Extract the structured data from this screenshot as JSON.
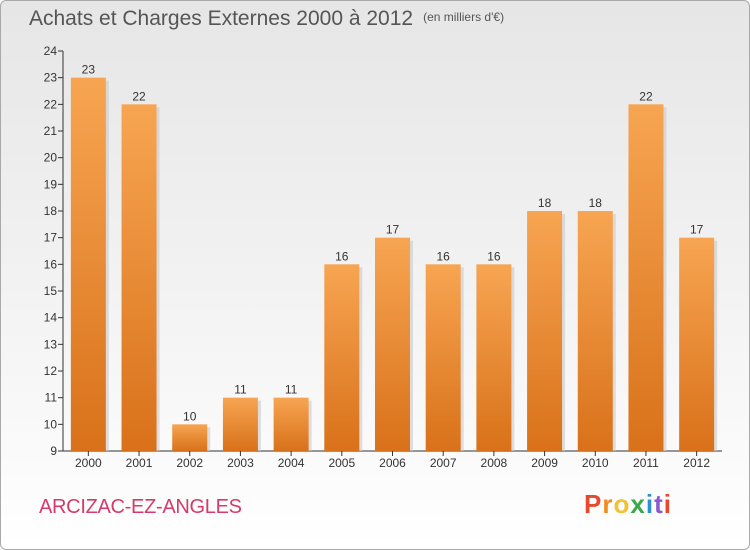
{
  "title": "Achats et Charges Externes 2000 à 2012",
  "unit_note": "(en milliers d'€)",
  "place": "ARCIZAC-EZ-ANGLES",
  "logo": "Proxiti",
  "colors": {
    "bar_top": "#f7a552",
    "bar_bottom": "#d9711a",
    "title": "#555555",
    "place": "#d63a6a"
  },
  "chart_data": {
    "type": "bar",
    "title": "Achats et Charges Externes 2000 à 2012",
    "subtitle": "(en milliers d'€)",
    "categories": [
      "2000",
      "2001",
      "2002",
      "2003",
      "2004",
      "2005",
      "2006",
      "2007",
      "2008",
      "2009",
      "2010",
      "2011",
      "2012"
    ],
    "values": [
      23,
      22,
      10,
      11,
      11,
      16,
      17,
      16,
      16,
      18,
      18,
      22,
      17
    ],
    "ylim": [
      9,
      24
    ],
    "yticks": [
      9,
      10,
      11,
      12,
      13,
      14,
      15,
      16,
      17,
      18,
      19,
      20,
      21,
      22,
      23,
      24
    ],
    "grid": false,
    "data_labels": true
  }
}
